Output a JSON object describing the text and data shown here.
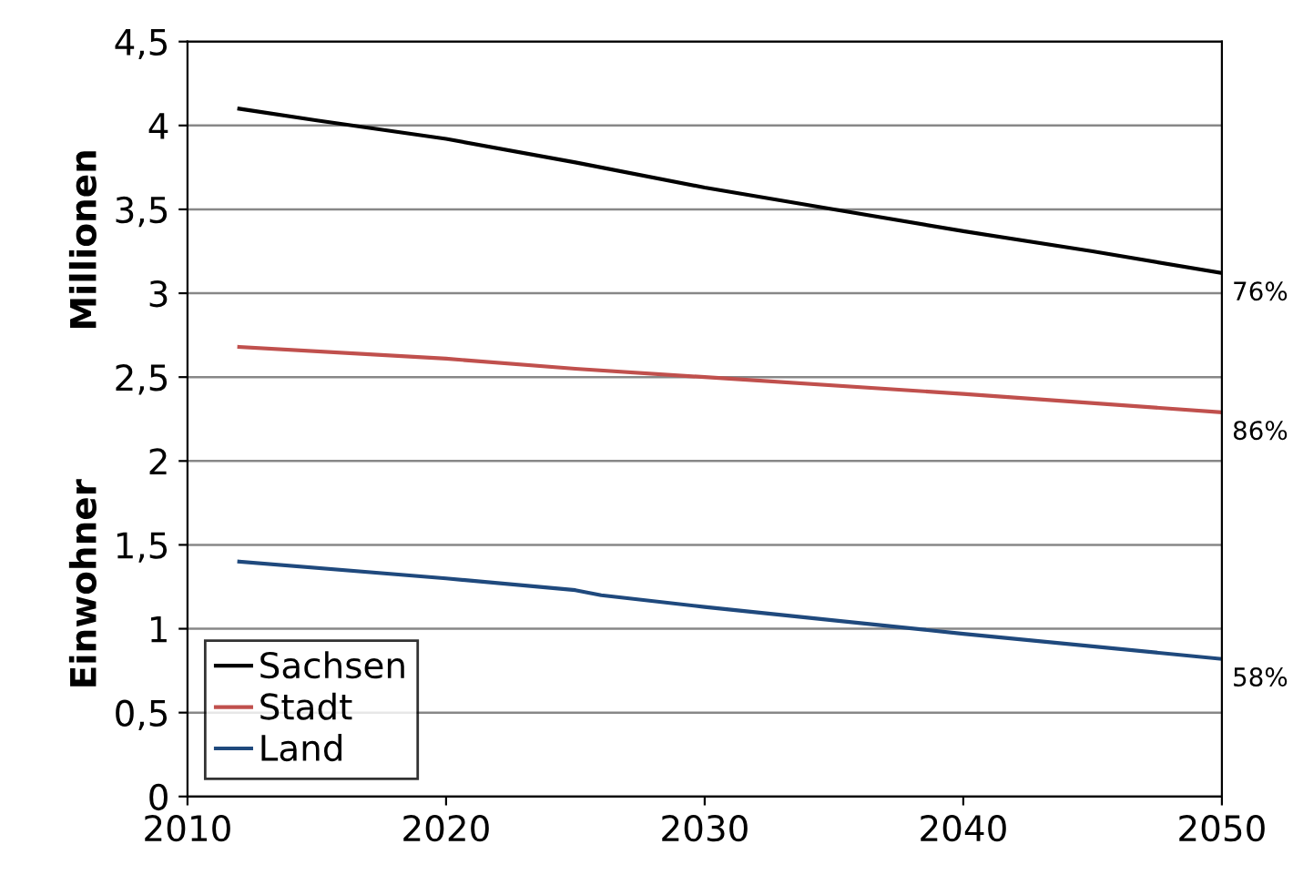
{
  "chart_data": {
    "type": "line",
    "ylabel": "Einwohner            Millionen",
    "xlim": [
      2010,
      2050
    ],
    "xticks": [
      2010,
      2020,
      2030,
      2040,
      2050
    ],
    "ylim": [
      0,
      4.5
    ],
    "yticks": [
      0,
      {
        "value": 0.5,
        "label": "0,5"
      },
      1,
      {
        "value": 1.5,
        "label": "1,5"
      },
      2,
      {
        "value": 2.5,
        "label": "2,5"
      },
      3,
      {
        "value": 3.5,
        "label": "3,5"
      },
      4,
      {
        "value": 4.5,
        "label": "4,5"
      }
    ],
    "grid": "y",
    "legend": "bottom left",
    "marker": "none",
    "line_style": "solid",
    "series": [
      {
        "name": "Sachsen",
        "color": "#000000",
        "x": [
          2012,
          2015,
          2020,
          2025,
          2030,
          2035,
          2040,
          2045,
          2050
        ],
        "values": [
          4.1,
          4.03,
          3.92,
          3.78,
          3.63,
          3.5,
          3.37,
          3.25,
          3.12
        ]
      },
      {
        "name": "Stadt",
        "color": "#c0504d",
        "x": [
          2012,
          2020,
          2025,
          2030,
          2040,
          2050
        ],
        "values": [
          2.68,
          2.61,
          2.55,
          2.5,
          2.4,
          2.29
        ]
      },
      {
        "name": "Land",
        "color": "#1f497d",
        "x": [
          2012,
          2020,
          2025,
          2026,
          2030,
          2035,
          2040,
          2050
        ],
        "values": [
          1.4,
          1.3,
          1.23,
          1.2,
          1.13,
          1.05,
          0.97,
          0.82
        ]
      }
    ],
    "annotations": [
      "76%",
      "86%",
      "58%"
    ]
  }
}
